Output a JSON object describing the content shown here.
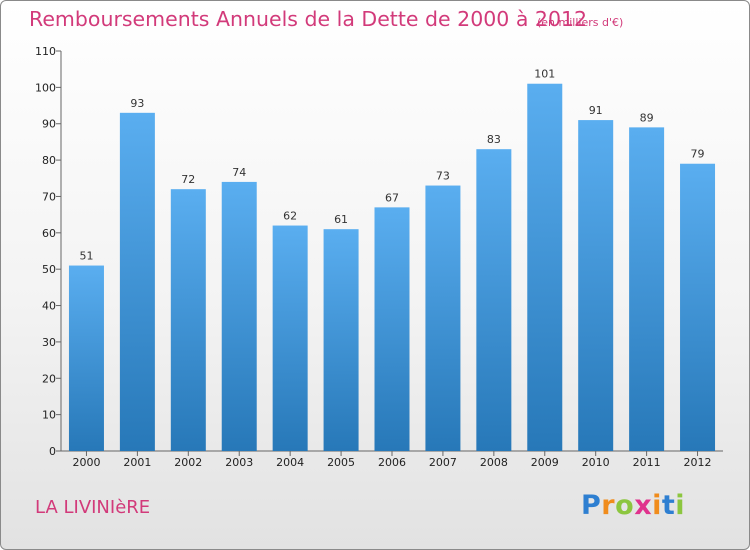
{
  "header": {
    "title": "Remboursements Annuels de la Dette de 2000 à 2012",
    "subtitle": "(en milliers d'€)"
  },
  "commune_name": "LA LIVINIèRE",
  "brand": {
    "letters": [
      "P",
      "r",
      "o",
      "x",
      "i",
      "t",
      "i"
    ],
    "colors": [
      "#2e7fd1",
      "#f08c1c",
      "#8cc63f",
      "#e0338d",
      "#f08c1c",
      "#2e7fd1",
      "#8cc63f"
    ]
  },
  "colors": {
    "bar_light": "#5aaef0",
    "bar_dark": "#2778b8",
    "title": "#d23a7a"
  },
  "chart_data": {
    "type": "bar",
    "title": "Remboursements Annuels de la Dette de 2000 à 2012",
    "categories": [
      "2000",
      "2001",
      "2002",
      "2003",
      "2004",
      "2005",
      "2006",
      "2007",
      "2008",
      "2009",
      "2010",
      "2011",
      "2012"
    ],
    "values": [
      51,
      93,
      72,
      74,
      62,
      61,
      67,
      73,
      83,
      101,
      91,
      89,
      79
    ],
    "ylim": [
      0,
      110
    ],
    "yticks": [
      0,
      10,
      20,
      30,
      40,
      50,
      60,
      70,
      80,
      90,
      100,
      110
    ],
    "grid": false,
    "legend": "none"
  }
}
